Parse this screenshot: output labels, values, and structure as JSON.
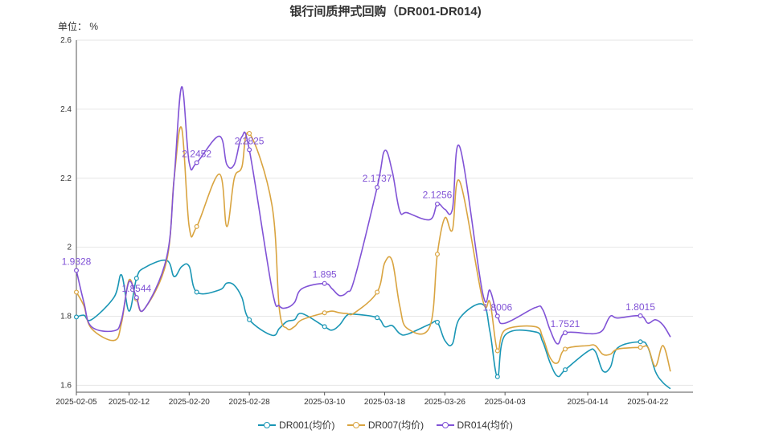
{
  "chart_data": {
    "type": "line",
    "title": "银行间质押式回购（DR001-DR014)",
    "unit_label": "单位： %",
    "ylim": [
      1.58,
      2.6
    ],
    "yticks": [
      "1.6",
      "1.8",
      "2",
      "2.2",
      "2.4",
      "2.6"
    ],
    "xticks": [
      "2025-02-05",
      "2025-02-12",
      "2025-02-20",
      "2025-02-28",
      "2025-03-10",
      "2025-03-18",
      "2025-03-26",
      "2025-04-03",
      "2025-04-14",
      "2025-04-22"
    ],
    "grid": true,
    "legend_position": "bottom",
    "x": [
      "2025-02-05",
      "2025-02-06",
      "2025-02-07",
      "2025-02-10",
      "2025-02-11",
      "2025-02-12",
      "2025-02-13",
      "2025-02-14",
      "2025-02-17",
      "2025-02-18",
      "2025-02-19",
      "2025-02-20",
      "2025-02-21",
      "2025-02-24",
      "2025-02-25",
      "2025-02-26",
      "2025-02-27",
      "2025-02-28",
      "2025-03-03",
      "2025-03-04",
      "2025-03-05",
      "2025-03-06",
      "2025-03-07",
      "2025-03-10",
      "2025-03-11",
      "2025-03-12",
      "2025-03-13",
      "2025-03-14",
      "2025-03-17",
      "2025-03-18",
      "2025-03-19",
      "2025-03-20",
      "2025-03-21",
      "2025-03-24",
      "2025-03-25",
      "2025-03-26",
      "2025-03-27",
      "2025-03-28",
      "2025-03-31",
      "2025-04-01",
      "2025-04-02",
      "2025-04-03",
      "2025-04-07",
      "2025-04-08",
      "2025-04-09",
      "2025-04-10",
      "2025-04-11",
      "2025-04-14",
      "2025-04-15",
      "2025-04-16",
      "2025-04-17",
      "2025-04-18",
      "2025-04-21",
      "2025-04-22",
      "2025-04-23",
      "2025-04-24",
      "2025-04-25"
    ],
    "series": [
      {
        "name": "DR001(均价)",
        "color": "#1a96b5",
        "values": [
          1.798,
          1.803,
          1.79,
          1.855,
          1.92,
          1.815,
          1.91,
          1.94,
          1.962,
          1.915,
          1.944,
          1.945,
          1.87,
          1.876,
          1.896,
          1.89,
          1.855,
          1.79,
          1.745,
          1.765,
          1.785,
          1.79,
          1.808,
          1.77,
          1.76,
          1.775,
          1.803,
          1.806,
          1.796,
          1.77,
          1.773,
          1.75,
          1.748,
          1.777,
          1.783,
          1.73,
          1.72,
          1.795,
          1.835,
          1.755,
          1.625,
          1.745,
          1.755,
          1.727,
          1.665,
          1.626,
          1.645,
          1.698,
          1.698,
          1.642,
          1.652,
          1.709,
          1.726,
          1.71,
          1.64,
          1.608,
          1.59
        ]
      },
      {
        "name": "DR007(均价)",
        "color": "#d9a440",
        "values": [
          1.87,
          1.83,
          1.765,
          1.73,
          1.78,
          1.905,
          1.85,
          1.82,
          1.96,
          2.2,
          2.345,
          2.06,
          2.06,
          2.212,
          2.06,
          2.2,
          2.232,
          2.33,
          2.123,
          1.82,
          1.765,
          1.77,
          1.79,
          1.81,
          1.815,
          1.81,
          1.808,
          1.81,
          1.87,
          1.955,
          1.96,
          1.83,
          1.765,
          1.77,
          1.98,
          2.085,
          2.05,
          2.19,
          1.85,
          1.84,
          1.7,
          1.76,
          1.77,
          1.74,
          1.68,
          1.665,
          1.705,
          1.715,
          1.715,
          1.69,
          1.69,
          1.705,
          1.71,
          1.71,
          1.655,
          1.715,
          1.64
        ]
      },
      {
        "name": "DR014(均价)",
        "color": "#8153d6",
        "values": [
          1.9328,
          1.84,
          1.77,
          1.758,
          1.79,
          1.9,
          1.8544,
          1.82,
          1.97,
          2.2,
          2.465,
          2.245,
          2.2452,
          2.322,
          2.24,
          2.24,
          2.32,
          2.2825,
          1.88,
          1.83,
          1.825,
          1.84,
          1.88,
          1.895,
          1.88,
          1.86,
          1.87,
          1.91,
          2.1737,
          2.28,
          2.22,
          2.105,
          2.1,
          2.08,
          2.1256,
          2.11,
          2.11,
          2.29,
          1.87,
          1.875,
          1.8006,
          1.78,
          1.825,
          1.82,
          1.76,
          1.72,
          1.7521,
          1.75,
          1.75,
          1.76,
          1.8,
          1.795,
          1.8015,
          1.78,
          1.79,
          1.775,
          1.74
        ]
      }
    ],
    "annotations": [
      {
        "series": 2,
        "index": 0,
        "text": "1.9328"
      },
      {
        "series": 2,
        "index": 6,
        "text": "1.8544"
      },
      {
        "series": 2,
        "index": 12,
        "text": "2.2452"
      },
      {
        "series": 2,
        "index": 17,
        "text": "2.2825"
      },
      {
        "series": 2,
        "index": 23,
        "text": "1.895"
      },
      {
        "series": 2,
        "index": 28,
        "text": "2.1737"
      },
      {
        "series": 2,
        "index": 34,
        "text": "2.1256"
      },
      {
        "series": 2,
        "index": 40,
        "text": "1.8006"
      },
      {
        "series": 2,
        "index": 46,
        "text": "1.7521"
      },
      {
        "series": 2,
        "index": 52,
        "text": "1.8015"
      }
    ],
    "marker_indices": [
      0,
      6,
      12,
      17,
      23,
      28,
      34,
      40,
      46,
      52
    ]
  }
}
